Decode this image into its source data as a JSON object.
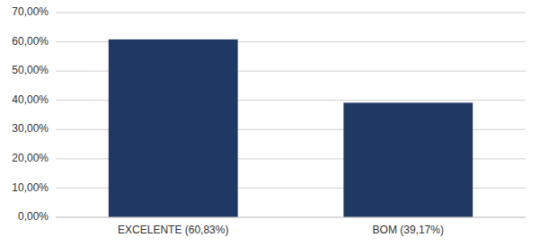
{
  "chart_data": {
    "type": "bar",
    "categories": [
      "EXCELENTE (60,83%)",
      "BOM (39,17%)"
    ],
    "values": [
      0.6083,
      0.3917
    ],
    "color": "#1F3864",
    "ylim": [
      0,
      0.7
    ],
    "yticks": [
      {
        "value": 0.0,
        "label": "0,00%"
      },
      {
        "value": 0.1,
        "label": "10,00%"
      },
      {
        "value": 0.2,
        "label": "20,00%"
      },
      {
        "value": 0.3,
        "label": "30,00%"
      },
      {
        "value": 0.4,
        "label": "40,00%"
      },
      {
        "value": 0.5,
        "label": "50,00%"
      },
      {
        "value": 0.6,
        "label": "60,00%"
      },
      {
        "value": 0.7,
        "label": "70,00%"
      }
    ],
    "grid": true
  }
}
